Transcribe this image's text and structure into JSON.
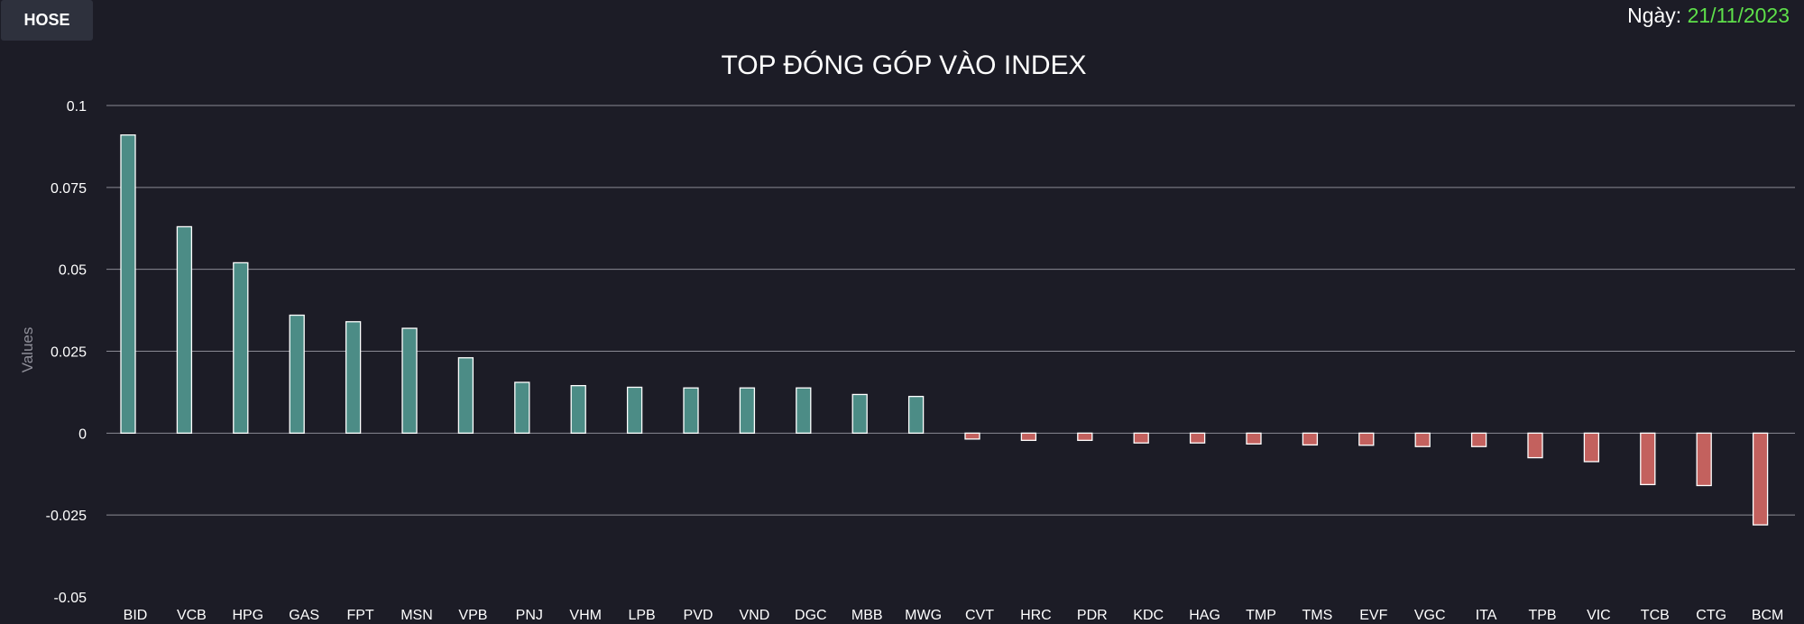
{
  "header": {
    "exchange_button_label": "HOSE",
    "date_label": "Ngày:",
    "date_value": "21/11/2023"
  },
  "colors": {
    "background": "#1c1c26",
    "positive_bar": "#4c8c86",
    "negative_bar": "#c3615e",
    "bar_stroke": "#ffffff",
    "grid": "#8a8a94",
    "date_value": "#5ee04a"
  },
  "chart_data": {
    "type": "bar",
    "title": "TOP ĐÓNG GÓP VÀO INDEX",
    "xlabel": "",
    "ylabel": "Values",
    "ylim": [
      -0.05,
      0.1
    ],
    "yticks": [
      0.1,
      0.075,
      0.05,
      0.025,
      0,
      -0.025,
      -0.05
    ],
    "grid": true,
    "categories": [
      "BID",
      "VCB",
      "HPG",
      "GAS",
      "FPT",
      "MSN",
      "VPB",
      "PNJ",
      "VHM",
      "LPB",
      "PVD",
      "VND",
      "DGC",
      "MBB",
      "MWG",
      "CVT",
      "HRC",
      "PDR",
      "KDC",
      "HAG",
      "TMP",
      "TMS",
      "EVF",
      "VGC",
      "ITA",
      "TPB",
      "VIC",
      "TCB",
      "CTG",
      "BCM"
    ],
    "values": [
      0.091,
      0.063,
      0.052,
      0.036,
      0.034,
      0.032,
      0.023,
      0.0155,
      0.0145,
      0.014,
      0.0138,
      0.0138,
      0.0138,
      0.0118,
      0.0112,
      -0.0018,
      -0.0022,
      -0.0022,
      -0.003,
      -0.003,
      -0.0033,
      -0.0036,
      -0.0037,
      -0.0041,
      -0.0041,
      -0.0075,
      -0.0087,
      -0.0157,
      -0.016,
      -0.028
    ]
  }
}
